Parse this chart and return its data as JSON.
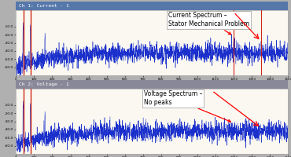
{
  "bg_color": "#faf8f0",
  "outer_bg": "#b0b0b0",
  "title_bar_color1": "#5577aa",
  "title_bar_color2": "#888899",
  "plot1_title": "Ch 1: Current - 1",
  "plot2_title": "Ch 2: Voltage - 1",
  "annotation1": "Current Spectrum –\nStator Mechanical Problem",
  "annotation2": "Voltage Spectrum –\nNo peaks",
  "line_color": "#1a2fcc",
  "peak_color": "#cc1100",
  "marker_color": "#cc1100",
  "x_range": [
    0,
    1500
  ],
  "y_range": [
    -70,
    10
  ],
  "n_points": 2000,
  "seed1": 7,
  "seed2": 13,
  "annot_fontsize": 5.5,
  "tick_fontsize": 3.2,
  "title_fontsize": 4.5
}
